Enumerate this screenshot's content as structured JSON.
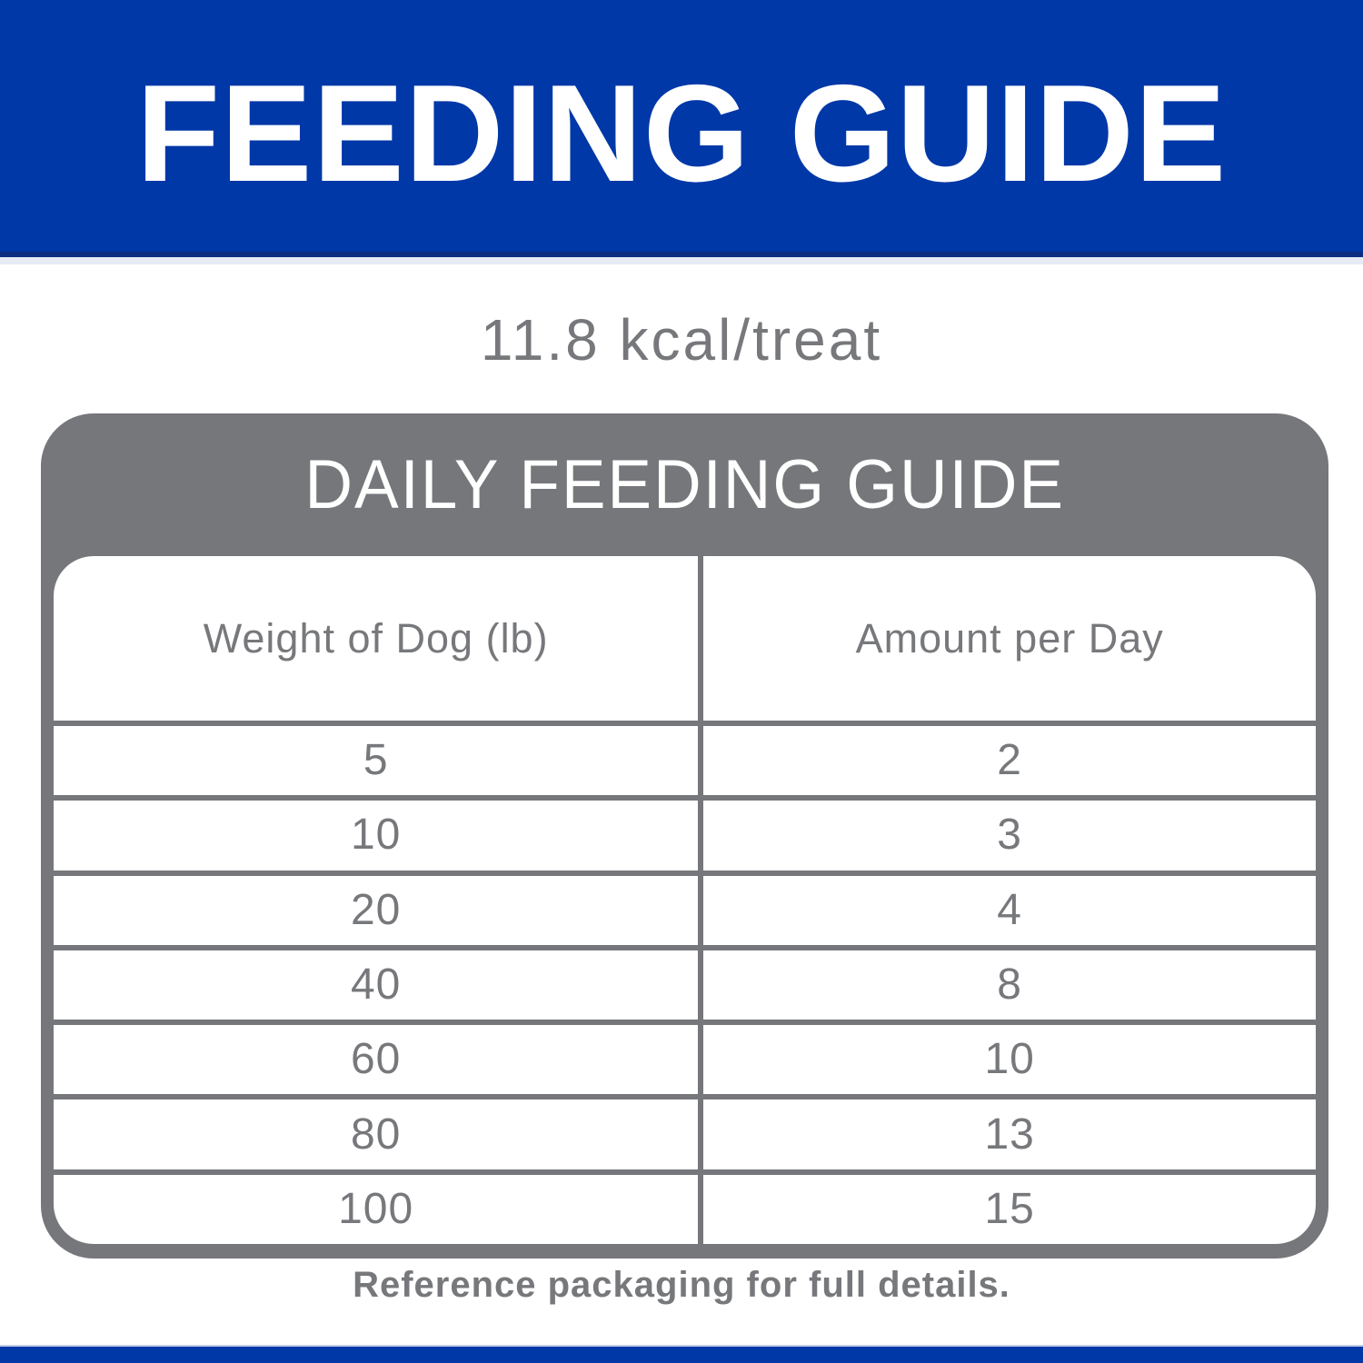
{
  "header": {
    "title": "FEEDING GUIDE"
  },
  "calorie_info": "11.8 kcal/treat",
  "chart_data": {
    "type": "table",
    "title": "DAILY FEEDING GUIDE",
    "columns": [
      "Weight of Dog (lb)",
      "Amount per Day"
    ],
    "rows": [
      [
        "5",
        "2"
      ],
      [
        "10",
        "3"
      ],
      [
        "20",
        "4"
      ],
      [
        "40",
        "8"
      ],
      [
        "60",
        "10"
      ],
      [
        "80",
        "13"
      ],
      [
        "100",
        "15"
      ]
    ]
  },
  "footnote": "Reference packaging for full details.",
  "colors": {
    "brand_blue": "#0038a8",
    "banner_edge_blue": "#0d2d80",
    "neutral_gray": "#76777b",
    "text_gray": "#77787b",
    "white": "#ffffff"
  }
}
